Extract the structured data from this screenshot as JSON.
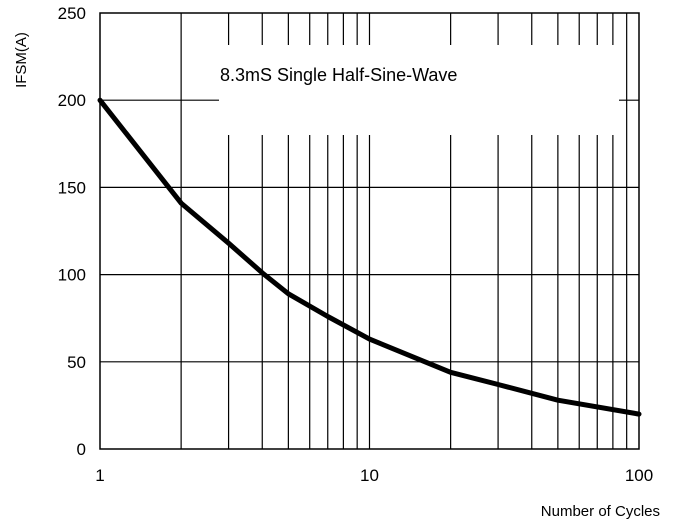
{
  "chart_data": {
    "type": "line",
    "title": "",
    "xlabel": "Number of Cycles",
    "ylabel": "IFSM(A)",
    "x_scale": "log",
    "xlim": [
      1,
      100
    ],
    "ylim": [
      0,
      250
    ],
    "x_ticks": [
      "1",
      "10",
      "100"
    ],
    "y_ticks": [
      "0",
      "50",
      "100",
      "150",
      "200",
      "250"
    ],
    "grid": true,
    "annotation": "8.3mS Single Half-Sine-Wave",
    "series": [
      {
        "x": [
          1,
          2,
          3,
          4,
          5,
          7,
          10,
          20,
          30,
          50,
          100
        ],
        "values": [
          200,
          141,
          118,
          101,
          89,
          76,
          63,
          44,
          37,
          28,
          20
        ]
      }
    ]
  }
}
